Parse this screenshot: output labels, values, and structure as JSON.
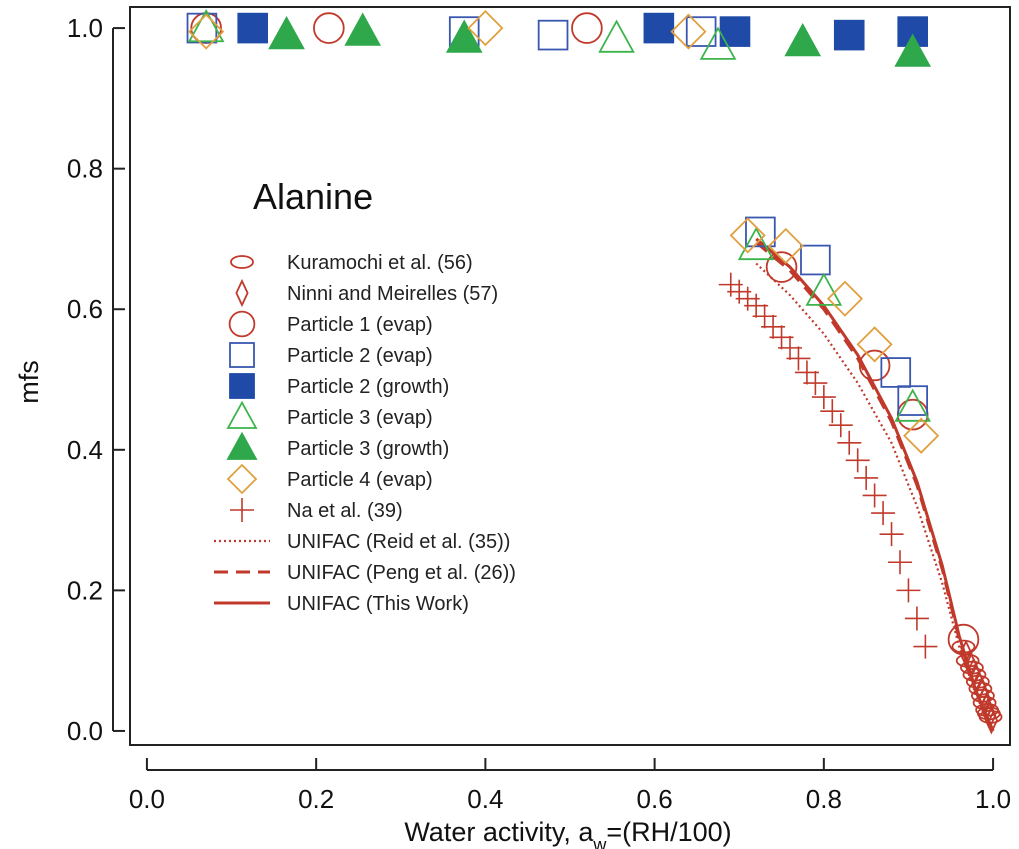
{
  "chart_data": {
    "type": "scatter",
    "title": "",
    "annotation": "Alanine",
    "xlabel": "Water activity, a",
    "xlabel_sub": "w",
    "xlabel_suffix": "=(RH/100)",
    "ylabel": "mfs",
    "xlim": [
      -0.02,
      1.02
    ],
    "ylim": [
      -0.02,
      1.03
    ],
    "xticks": [
      0.0,
      0.2,
      0.4,
      0.6,
      0.8,
      1.0
    ],
    "xtick_labels": [
      "0.0",
      "0.2",
      "0.4",
      "0.6",
      "0.8",
      "1.0"
    ],
    "yticks": [
      0.0,
      0.2,
      0.4,
      0.6,
      0.8,
      1.0
    ],
    "ytick_labels": [
      "0.0",
      "0.2",
      "0.4",
      "0.6",
      "0.8",
      "1.0"
    ],
    "grid": false,
    "legend_position": "center-left",
    "series": [
      {
        "name": "Kuramochi et al. (56)",
        "marker": "ellipse",
        "color": "#c0392b",
        "filled": false,
        "points": [
          [
            0.965,
            0.12
          ],
          [
            0.97,
            0.1
          ],
          [
            0.975,
            0.09
          ],
          [
            0.978,
            0.08
          ],
          [
            0.982,
            0.07
          ],
          [
            0.985,
            0.06
          ],
          [
            0.988,
            0.05
          ],
          [
            0.99,
            0.04
          ],
          [
            0.993,
            0.03
          ],
          [
            0.995,
            0.025
          ],
          [
            0.997,
            0.02
          ]
        ]
      },
      {
        "name": "Ninni and Meirelles (57)",
        "marker": "thin-diamond",
        "color": "#c0392b",
        "filled": false,
        "points": [
          [
            0.968,
            0.11
          ],
          [
            0.973,
            0.095
          ],
          [
            0.977,
            0.085
          ],
          [
            0.98,
            0.075
          ],
          [
            0.984,
            0.065
          ],
          [
            0.987,
            0.055
          ],
          [
            0.99,
            0.045
          ],
          [
            0.992,
            0.035
          ],
          [
            0.994,
            0.028
          ],
          [
            0.996,
            0.022
          ],
          [
            0.998,
            0.015
          ]
        ]
      },
      {
        "name": "Particle 1 (evap)",
        "marker": "circle",
        "color": "#c0392b",
        "filled": false,
        "points": [
          [
            0.07,
            1.0
          ],
          [
            0.215,
            1.0
          ],
          [
            0.52,
            1.0
          ],
          [
            0.75,
            0.66
          ],
          [
            0.86,
            0.52
          ],
          [
            0.905,
            0.45
          ],
          [
            0.965,
            0.13
          ]
        ]
      },
      {
        "name": "Particle 2 (evap)",
        "marker": "square",
        "color": "#3a57b0",
        "filled": false,
        "points": [
          [
            0.065,
            1.0
          ],
          [
            0.375,
            0.995
          ],
          [
            0.48,
            0.99
          ],
          [
            0.655,
            0.995
          ],
          [
            0.725,
            0.71
          ],
          [
            0.79,
            0.67
          ],
          [
            0.885,
            0.51
          ],
          [
            0.905,
            0.47
          ]
        ]
      },
      {
        "name": "Particle 2 (growth)",
        "marker": "square",
        "color": "#1f4aa8",
        "filled": true,
        "points": [
          [
            0.125,
            1.0
          ],
          [
            0.605,
            1.0
          ],
          [
            0.695,
            0.995
          ],
          [
            0.83,
            0.99
          ],
          [
            0.905,
            0.995
          ]
        ]
      },
      {
        "name": "Particle 3 (evap)",
        "marker": "triangle",
        "color": "#3cb44b",
        "filled": false,
        "points": [
          [
            0.07,
            1.0
          ],
          [
            0.555,
            0.985
          ],
          [
            0.675,
            0.975
          ],
          [
            0.72,
            0.69
          ],
          [
            0.8,
            0.625
          ],
          [
            0.905,
            0.46
          ]
        ]
      },
      {
        "name": "Particle 3 (growth)",
        "marker": "triangle",
        "color": "#2ea84a",
        "filled": true,
        "points": [
          [
            0.165,
            0.99
          ],
          [
            0.255,
            0.995
          ],
          [
            0.375,
            0.985
          ],
          [
            0.775,
            0.98
          ],
          [
            0.905,
            0.965
          ]
        ]
      },
      {
        "name": "Particle 4 (evap)",
        "marker": "diamond",
        "color": "#e0a040",
        "filled": false,
        "points": [
          [
            0.07,
            0.995
          ],
          [
            0.4,
            1.0
          ],
          [
            0.64,
            0.995
          ],
          [
            0.71,
            0.705
          ],
          [
            0.755,
            0.69
          ],
          [
            0.825,
            0.615
          ],
          [
            0.86,
            0.55
          ],
          [
            0.915,
            0.42
          ]
        ]
      },
      {
        "name": "Na et al. (39)",
        "marker": "plus",
        "color": "#c0392b",
        "filled": false,
        "points": [
          [
            0.69,
            0.635
          ],
          [
            0.7,
            0.625
          ],
          [
            0.71,
            0.615
          ],
          [
            0.72,
            0.605
          ],
          [
            0.73,
            0.59
          ],
          [
            0.74,
            0.575
          ],
          [
            0.75,
            0.56
          ],
          [
            0.76,
            0.545
          ],
          [
            0.77,
            0.53
          ],
          [
            0.78,
            0.51
          ],
          [
            0.79,
            0.495
          ],
          [
            0.8,
            0.475
          ],
          [
            0.81,
            0.455
          ],
          [
            0.82,
            0.435
          ],
          [
            0.83,
            0.41
          ],
          [
            0.84,
            0.385
          ],
          [
            0.85,
            0.36
          ],
          [
            0.86,
            0.335
          ],
          [
            0.87,
            0.31
          ],
          [
            0.88,
            0.28
          ],
          [
            0.89,
            0.24
          ],
          [
            0.9,
            0.2
          ],
          [
            0.91,
            0.16
          ],
          [
            0.92,
            0.12
          ]
        ]
      }
    ],
    "lines": [
      {
        "name": "UNIFAC (Reid et al. (35))",
        "style": "dotted",
        "color": "#c0392b",
        "points": [
          [
            0.72,
            0.665
          ],
          [
            0.76,
            0.62
          ],
          [
            0.8,
            0.565
          ],
          [
            0.84,
            0.495
          ],
          [
            0.88,
            0.41
          ],
          [
            0.91,
            0.32
          ],
          [
            0.94,
            0.21
          ],
          [
            0.96,
            0.12
          ],
          [
            0.98,
            0.05
          ],
          [
            1.0,
            0.0
          ]
        ]
      },
      {
        "name": "UNIFAC (Peng et al. (26))",
        "style": "dashed",
        "color": "#c0392b",
        "points": [
          [
            0.72,
            0.695
          ],
          [
            0.76,
            0.655
          ],
          [
            0.8,
            0.6
          ],
          [
            0.84,
            0.53
          ],
          [
            0.88,
            0.44
          ],
          [
            0.91,
            0.35
          ],
          [
            0.94,
            0.23
          ],
          [
            0.96,
            0.13
          ],
          [
            0.98,
            0.055
          ],
          [
            1.0,
            0.0
          ]
        ]
      },
      {
        "name": "UNIFAC (This Work)",
        "style": "solid",
        "color": "#c0392b",
        "points": [
          [
            0.72,
            0.7
          ],
          [
            0.76,
            0.66
          ],
          [
            0.8,
            0.605
          ],
          [
            0.84,
            0.535
          ],
          [
            0.88,
            0.445
          ],
          [
            0.91,
            0.355
          ],
          [
            0.94,
            0.235
          ],
          [
            0.96,
            0.135
          ],
          [
            0.98,
            0.056
          ],
          [
            1.0,
            0.0
          ]
        ]
      }
    ]
  }
}
